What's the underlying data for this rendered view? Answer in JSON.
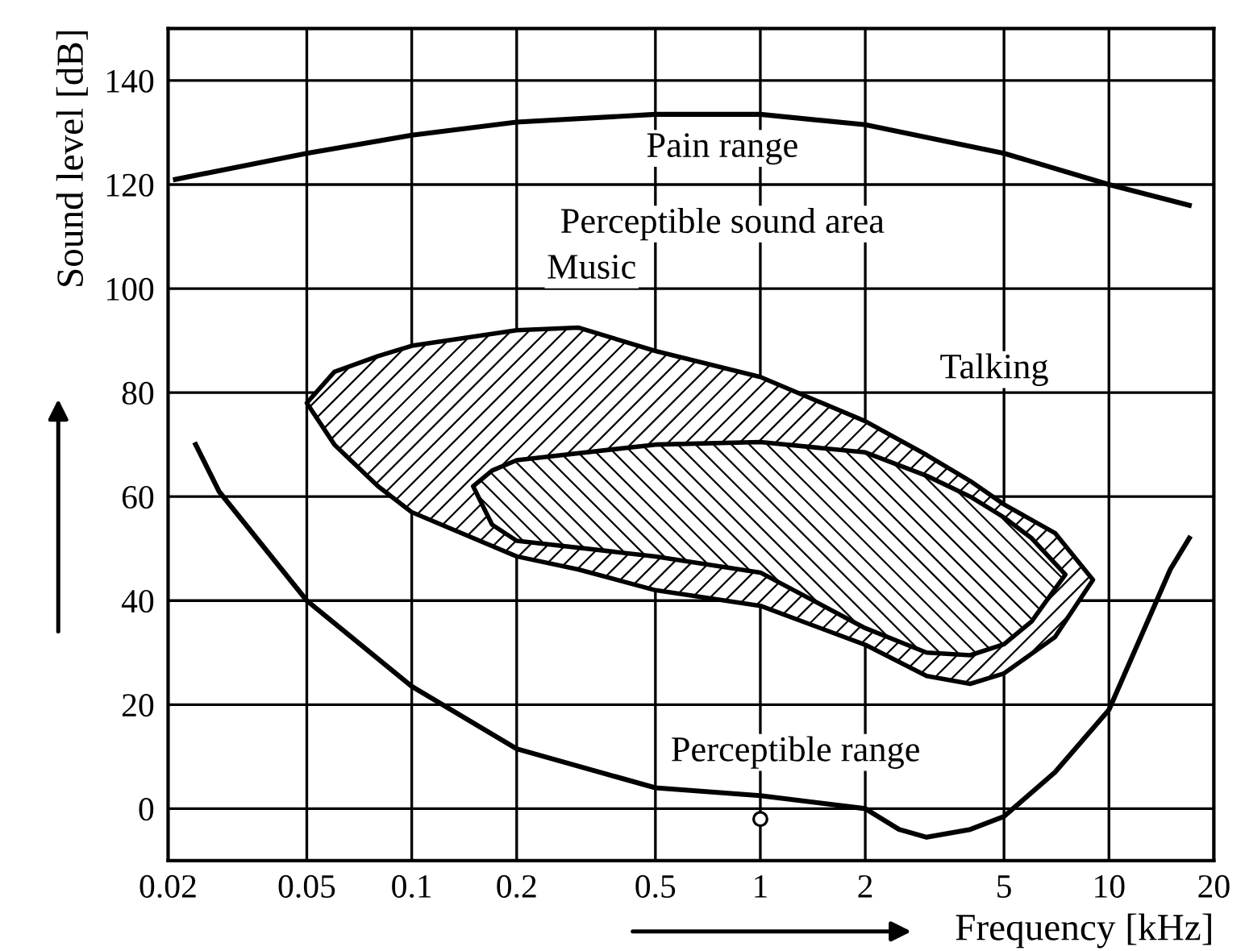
{
  "chart_data": {
    "type": "line",
    "xlabel": "Frequency [kHz]",
    "ylabel": "Sound level [dB]",
    "log": "x",
    "xlim": [
      0.02,
      20
    ],
    "xticks": [
      0.02,
      0.05,
      0.1,
      0.2,
      0.5,
      1,
      2,
      5,
      10,
      20
    ],
    "ylim": [
      -10,
      150
    ],
    "yticks": [
      0,
      20,
      40,
      60,
      80,
      100,
      120,
      140
    ],
    "grid": true,
    "legend": false,
    "series": [
      {
        "color": "#000000",
        "x": [
          0.021,
          0.05,
          0.1,
          0.2,
          0.5,
          1,
          2,
          5,
          10,
          17
        ],
        "values": [
          121,
          126,
          129.5,
          132,
          133.5,
          133.5,
          131.5,
          126,
          120,
          116
        ]
      },
      {
        "color": "#000000",
        "x": [
          0.024,
          0.028,
          0.05,
          0.1,
          0.2,
          0.5,
          1,
          2,
          2.5,
          3,
          4,
          5,
          7,
          10,
          15,
          17
        ],
        "values": [
          70,
          61,
          40,
          23.5,
          11.5,
          4,
          2.5,
          0,
          -4,
          -5.5,
          -4,
          -1.5,
          7,
          19,
          46,
          52
        ]
      },
      {
        "type": "scatter",
        "color": "#000000",
        "marker": "circle",
        "x": [
          1
        ],
        "values": [
          -2
        ]
      }
    ],
    "annotations": [
      "Pain range",
      "Perceptible sound area",
      "Music",
      "Talking",
      "Perceptible range"
    ]
  }
}
